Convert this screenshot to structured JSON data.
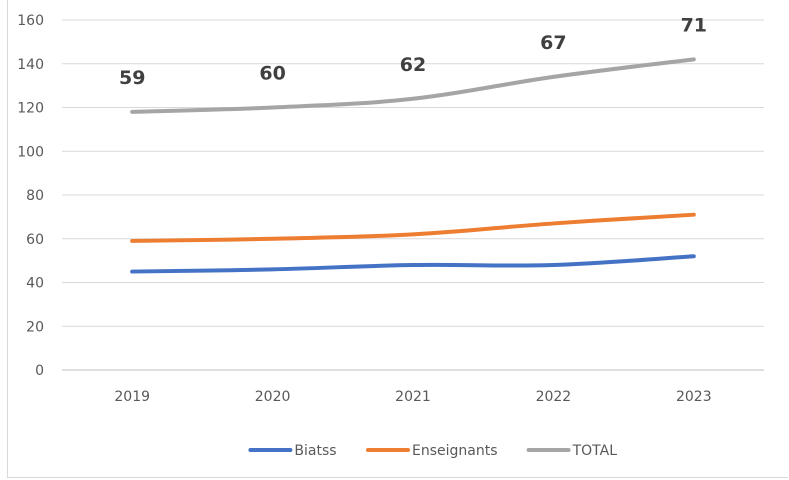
{
  "chart_data": {
    "type": "line",
    "categories": [
      "2019",
      "2020",
      "2021",
      "2022",
      "2023"
    ],
    "series": [
      {
        "name": "Biatss",
        "values": [
          45,
          46,
          48,
          48,
          52
        ],
        "color": "#4472C4"
      },
      {
        "name": "Enseignants",
        "values": [
          59,
          60,
          62,
          67,
          71
        ],
        "color": "#ED7D31"
      },
      {
        "name": "TOTAL",
        "values": [
          118,
          120,
          124,
          134,
          142
        ],
        "color": "#A5A5A5"
      }
    ],
    "data_labels": {
      "series": "Enseignants",
      "placement": "above TOTAL line"
    },
    "ylim": [
      0,
      160
    ],
    "yticks": [
      0,
      20,
      40,
      60,
      80,
      100,
      120,
      140,
      160
    ],
    "grid": true,
    "legend": "bottom",
    "title": "",
    "xlabel": "",
    "ylabel": ""
  }
}
